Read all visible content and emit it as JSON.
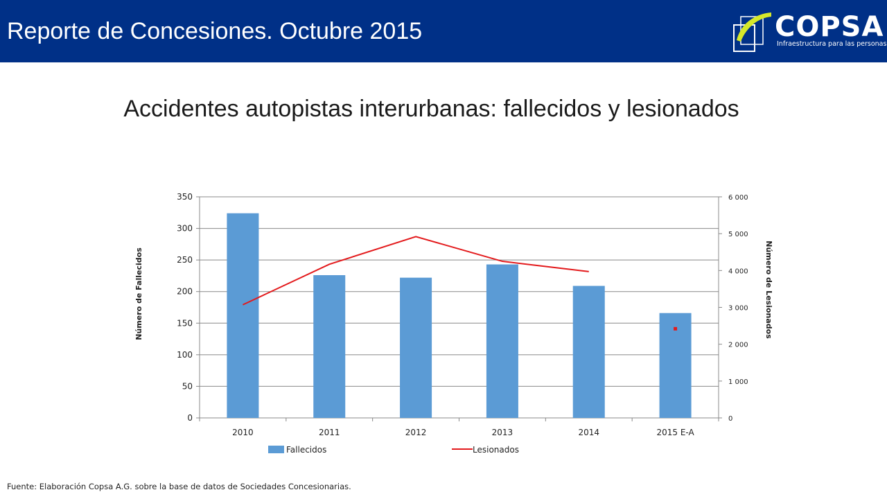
{
  "header": {
    "title": "Reporte de Concesiones. Octubre 2015",
    "logo_text": "COPSA",
    "logo_tagline": "Infraestructura para las personas"
  },
  "slide_title": "Accidentes autopistas interurbanas: fallecidos y lesionados",
  "footer": {
    "source": "Fuente: Elaboración Copsa A.G. sobre la base de datos de Sociedades Concesionarias."
  },
  "colors": {
    "header_bg": "#003087",
    "bar": "#5b9bd5",
    "line": "#e31a1c",
    "logo_accent": "#d6e82a"
  },
  "chart_data": {
    "type": "bar",
    "categories": [
      "2010",
      "2011",
      "2012",
      "2013",
      "2014",
      "2015 E-A"
    ],
    "ylabel": "Número de Fallecidos",
    "y2label": "Número de Lesionados",
    "ylim": [
      0,
      350
    ],
    "y2lim": [
      0,
      6000
    ],
    "yticks": [
      "0",
      "50",
      "100",
      "150",
      "200",
      "250",
      "300",
      "350"
    ],
    "y2ticks": [
      "0",
      "1 000",
      "2 000",
      "3 000",
      "4 000",
      "5 000",
      "6 000"
    ],
    "series": [
      {
        "name": "Fallecidos",
        "type": "bar",
        "axis": "left",
        "values": [
          324,
          226,
          222,
          243,
          209,
          166
        ]
      },
      {
        "name": "Lesionados",
        "type": "line",
        "axis": "right",
        "values": [
          3070,
          4170,
          4920,
          4250,
          3970,
          2420
        ]
      }
    ],
    "legend": "bottom",
    "grid": true
  }
}
